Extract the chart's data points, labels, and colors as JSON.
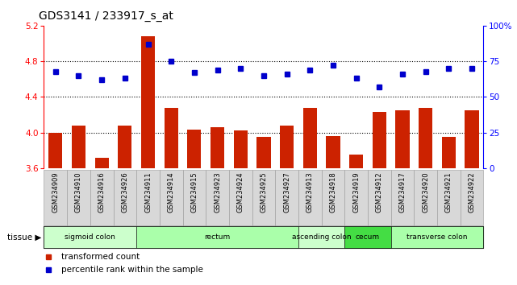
{
  "title": "GDS3141 / 233917_s_at",
  "samples": [
    "GSM234909",
    "GSM234910",
    "GSM234916",
    "GSM234926",
    "GSM234911",
    "GSM234914",
    "GSM234915",
    "GSM234923",
    "GSM234924",
    "GSM234925",
    "GSM234927",
    "GSM234913",
    "GSM234918",
    "GSM234919",
    "GSM234912",
    "GSM234917",
    "GSM234920",
    "GSM234921",
    "GSM234922"
  ],
  "bar_values": [
    4.0,
    4.08,
    3.72,
    4.08,
    5.08,
    4.28,
    4.03,
    4.06,
    4.02,
    3.95,
    4.08,
    4.28,
    3.96,
    3.75,
    4.23,
    4.25,
    4.28,
    3.95,
    4.25
  ],
  "dot_values": [
    68,
    65,
    62,
    63,
    87,
    75,
    67,
    69,
    70,
    65,
    66,
    69,
    72,
    63,
    57,
    66,
    68,
    70,
    70
  ],
  "bar_color": "#cc2200",
  "dot_color": "#0000cc",
  "ylim_left": [
    3.6,
    5.2
  ],
  "ylim_right": [
    0,
    100
  ],
  "yticks_left": [
    3.6,
    4.0,
    4.4,
    4.8,
    5.2
  ],
  "yticks_right": [
    0,
    25,
    50,
    75,
    100
  ],
  "ytick_right_labels": [
    "0",
    "25",
    "50",
    "75",
    "100%"
  ],
  "grid_lines": [
    4.0,
    4.4,
    4.8
  ],
  "tissue_groups": [
    {
      "label": "sigmoid colon",
      "start": 0,
      "end": 4,
      "color": "#ccffcc"
    },
    {
      "label": "rectum",
      "start": 4,
      "end": 11,
      "color": "#aaffaa"
    },
    {
      "label": "ascending colon",
      "start": 11,
      "end": 13,
      "color": "#ccffcc"
    },
    {
      "label": "cecum",
      "start": 13,
      "end": 15,
      "color": "#44dd44"
    },
    {
      "label": "transverse colon",
      "start": 15,
      "end": 19,
      "color": "#aaffaa"
    }
  ],
  "legend_bar_label": "transformed count",
  "legend_dot_label": "percentile rank within the sample"
}
